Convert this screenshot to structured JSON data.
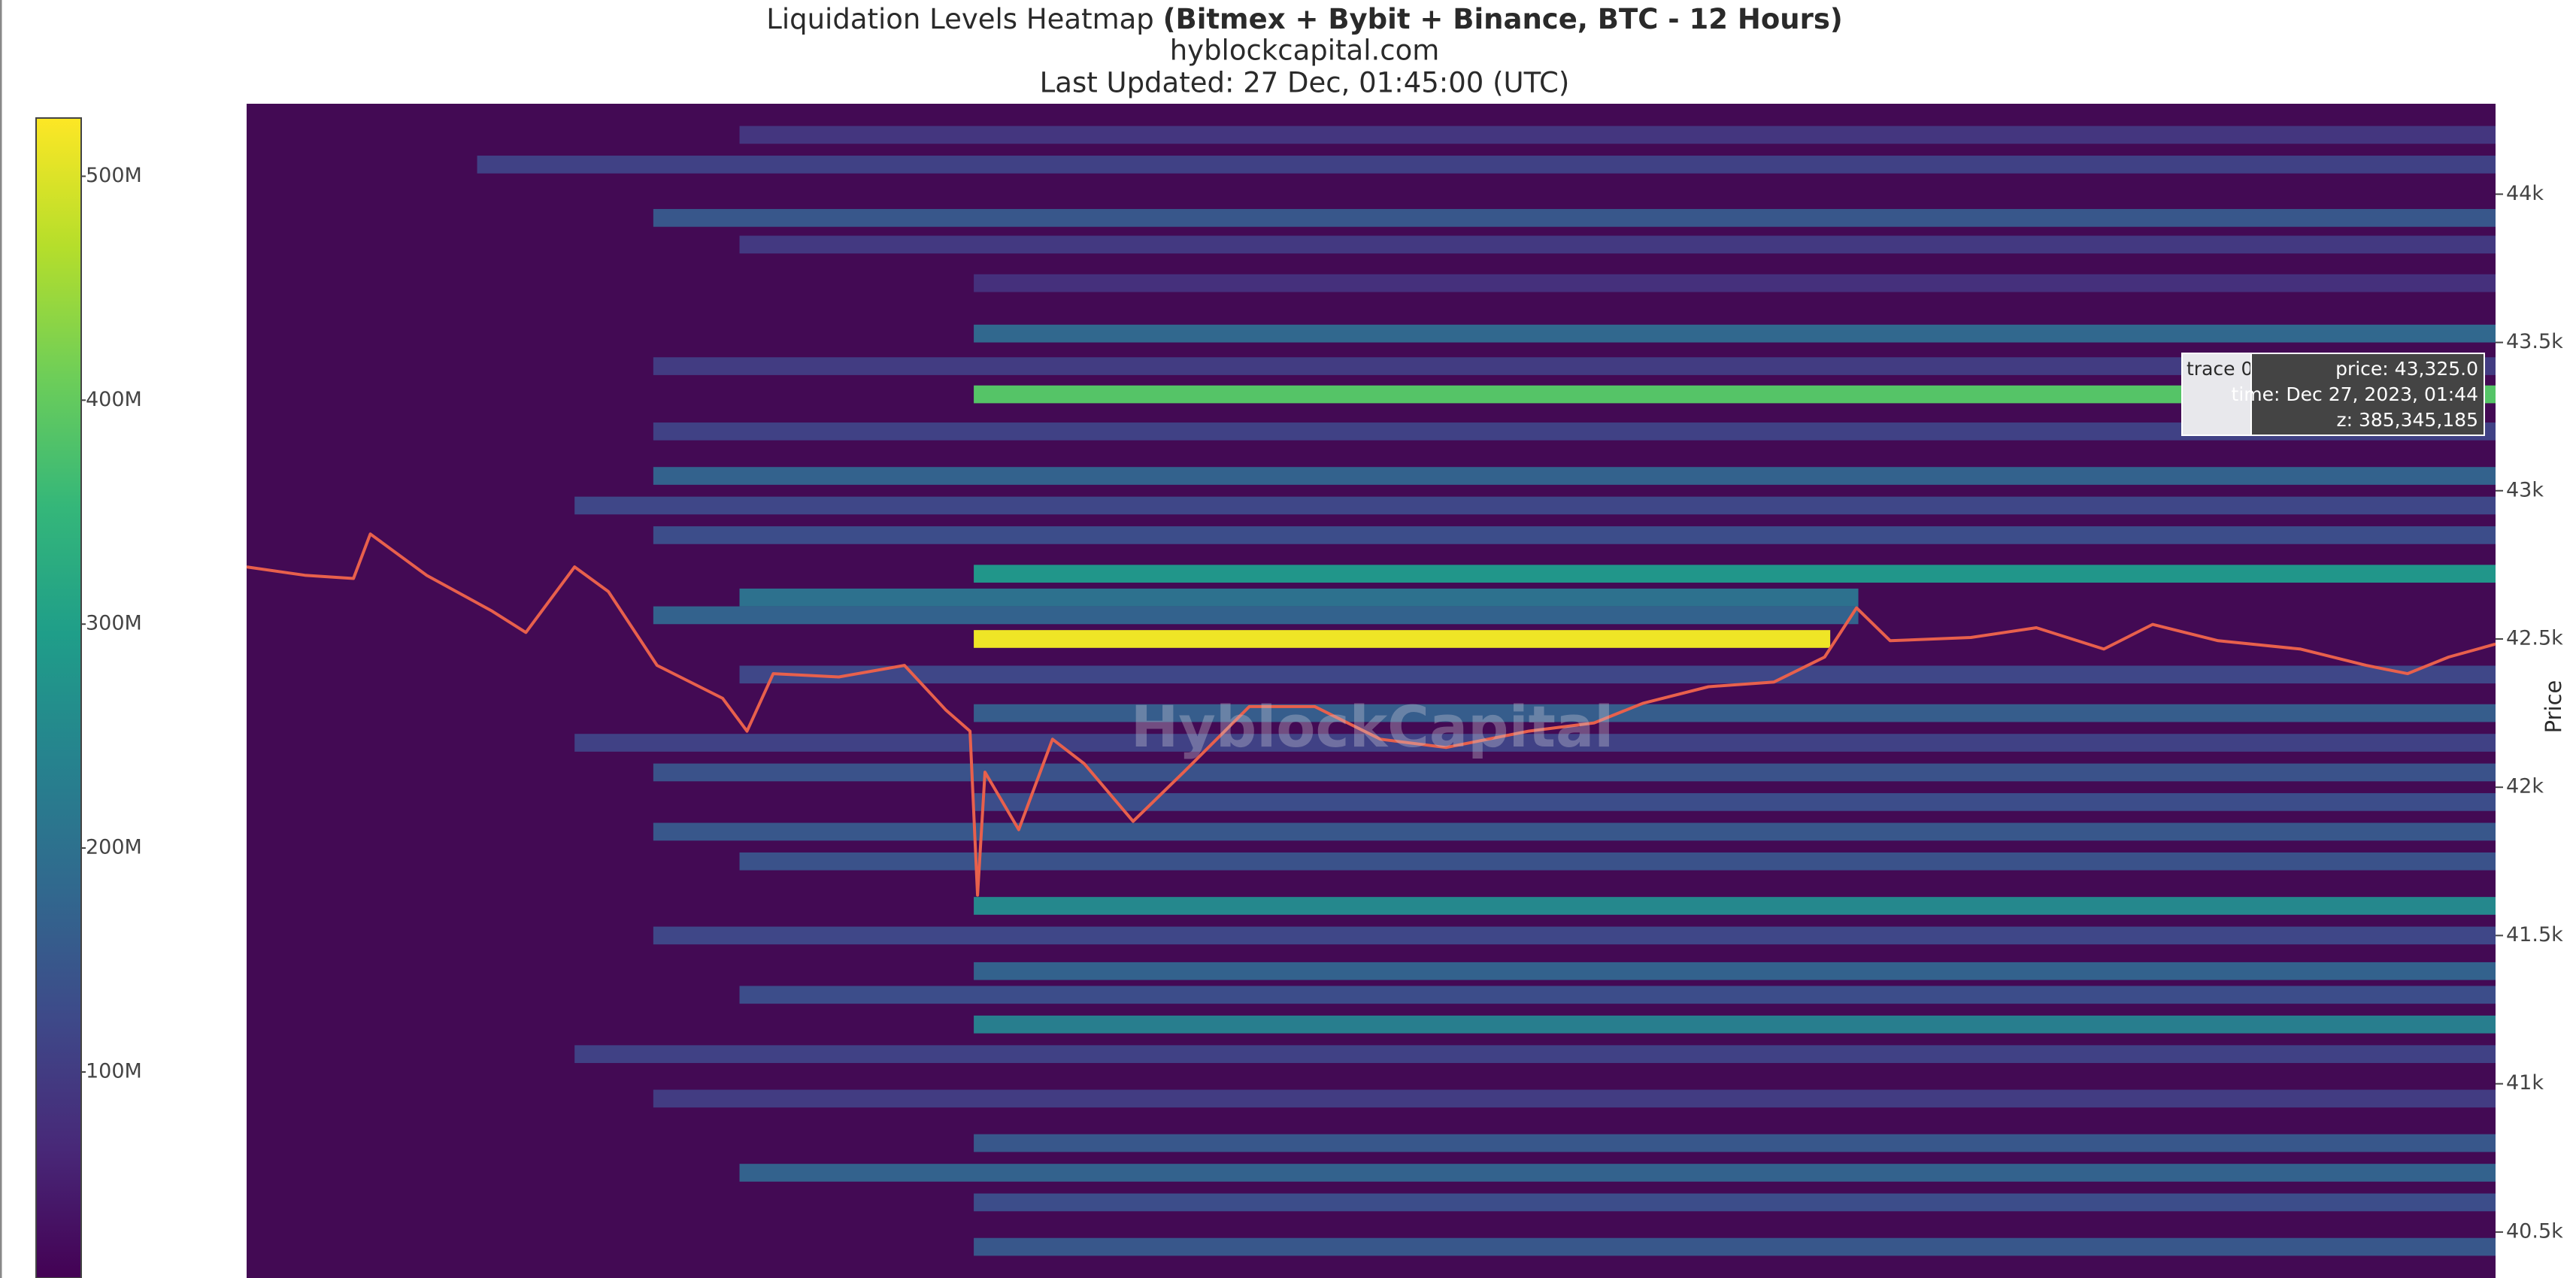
{
  "chart_data": {
    "type": "heatmap",
    "title": "Liquidation Levels Heatmap",
    "title_bold": "(Bitmex + Bybit + Binance, BTC - 12 Hours)",
    "subtitle": "hyblockcapital.com",
    "updated": "Last Updated: 27 Dec, 01:45:00 (UTC)",
    "watermark": "HyblockCapital",
    "y_label": "Price",
    "colorscale": "Viridis",
    "background": "#430a54",
    "xlim": [
      0,
      12
    ],
    "ylim": [
      40345,
      44305
    ],
    "yticks": [
      {
        "value": 40500,
        "label": "40.5k"
      },
      {
        "value": 41000,
        "label": "41k"
      },
      {
        "value": 41500,
        "label": "41.5k"
      },
      {
        "value": 42000,
        "label": "42k"
      },
      {
        "value": 42500,
        "label": "42.5k"
      },
      {
        "value": 43000,
        "label": "43k"
      },
      {
        "value": 43500,
        "label": "43.5k"
      },
      {
        "value": 44000,
        "label": "44k"
      }
    ],
    "zlim": [
      8000000,
      526000000
    ],
    "zticks": [
      {
        "value": 100000000,
        "label": "100M"
      },
      {
        "value": 200000000,
        "label": "200M"
      },
      {
        "value": 300000000,
        "label": "300M"
      },
      {
        "value": 400000000,
        "label": "400M"
      },
      {
        "value": 500000000,
        "label": "500M"
      }
    ],
    "levels": {
      "price": [
        44200,
        44100,
        43920,
        43830,
        43700,
        43530,
        43420,
        43325,
        43200,
        43050,
        42950,
        42850,
        42720,
        42640,
        42580,
        42500,
        42380,
        42250,
        42150,
        42050,
        41950,
        41850,
        41750,
        41600,
        41500,
        41380,
        41300,
        41200,
        41100,
        40950,
        40800,
        40700,
        40600,
        40450
      ],
      "start": [
        2.63,
        1.23,
        2.17,
        2.63,
        3.88,
        3.88,
        2.17,
        3.88,
        2.17,
        2.17,
        1.75,
        2.17,
        3.88,
        2.63,
        2.17,
        3.88,
        2.63,
        3.88,
        1.75,
        2.17,
        3.88,
        2.17,
        2.63,
        3.88,
        2.17,
        3.88,
        2.63,
        3.88,
        1.75,
        2.17,
        3.88,
        2.63,
        3.88,
        3.88
      ],
      "end": [
        12,
        12,
        12,
        12,
        12,
        12,
        12,
        12,
        12,
        12,
        12,
        12,
        12,
        8.6,
        8.6,
        8.45,
        12,
        12,
        12,
        12,
        12,
        12,
        12,
        12,
        12,
        12,
        12,
        12,
        12,
        12,
        12,
        12,
        12,
        12
      ],
      "z": [
        90000000,
        110000000,
        150000000,
        95000000,
        80000000,
        180000000,
        100000000,
        385345185,
        110000000,
        170000000,
        120000000,
        130000000,
        280000000,
        200000000,
        170000000,
        515000000,
        120000000,
        160000000,
        110000000,
        140000000,
        130000000,
        150000000,
        140000000,
        250000000,
        120000000,
        170000000,
        130000000,
        230000000,
        110000000,
        100000000,
        150000000,
        170000000,
        130000000,
        150000000
      ]
    },
    "price": {
      "color": "#e8604c",
      "x": [
        0,
        0.31,
        0.57,
        0.66,
        0.96,
        1.31,
        1.49,
        1.75,
        1.93,
        2.19,
        2.54,
        2.67,
        2.81,
        3.16,
        3.51,
        3.73,
        3.86,
        3.9,
        3.94,
        4.12,
        4.3,
        4.47,
        4.73,
        5.0,
        5.35,
        5.7,
        6.05,
        6.4,
        6.84,
        7.19,
        7.45,
        7.8,
        8.15,
        8.42,
        8.59,
        8.77,
        9.2,
        9.55,
        9.91,
        10.17,
        10.52,
        10.96,
        11.31,
        11.53,
        11.75,
        12.0
      ],
      "values": [
        42743,
        42715,
        42704,
        42854,
        42715,
        42594,
        42522,
        42743,
        42660,
        42411,
        42300,
        42189,
        42383,
        42372,
        42411,
        42261,
        42189,
        41636,
        42051,
        41857,
        42162,
        42079,
        41885,
        42051,
        42272,
        42272,
        42162,
        42134,
        42189,
        42217,
        42283,
        42339,
        42355,
        42439,
        42605,
        42494,
        42505,
        42538,
        42466,
        42549,
        42494,
        42466,
        42411,
        42383,
        42439,
        42483
      ]
    },
    "hover": {
      "trace": "trace 0",
      "lines": [
        "price: 43,325.0",
        "time: Dec 27, 2023, 01:44",
        "z: 385,345,185"
      ]
    }
  }
}
